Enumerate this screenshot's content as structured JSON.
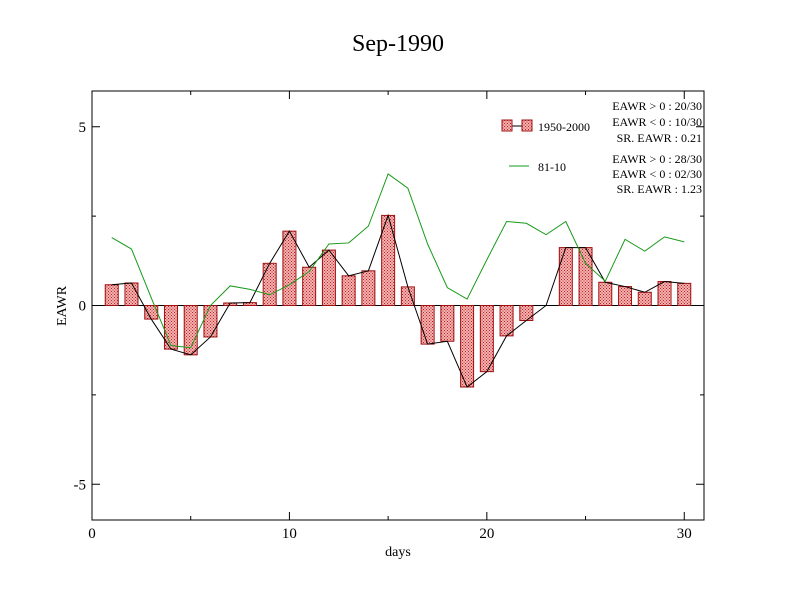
{
  "chart_data": {
    "type": "bar",
    "title": "Sep-1990",
    "xlabel": "days",
    "ylabel": "EAWR",
    "xlim": [
      0,
      31
    ],
    "ylim": [
      -6,
      6
    ],
    "x_ticks": [
      0,
      10,
      20,
      30
    ],
    "y_ticks": [
      -5,
      0,
      5
    ],
    "grid": false,
    "legend_position": "top-right",
    "days": [
      1,
      2,
      3,
      4,
      5,
      6,
      7,
      8,
      9,
      10,
      11,
      12,
      13,
      14,
      15,
      16,
      17,
      18,
      19,
      20,
      21,
      22,
      23,
      24,
      25,
      26,
      27,
      28,
      29,
      30
    ],
    "series": [
      {
        "name": "1950-2000",
        "kind": "bar",
        "values": [
          0.58,
          0.63,
          -0.38,
          -1.22,
          -1.38,
          -0.88,
          0.07,
          0.08,
          1.18,
          2.08,
          1.07,
          1.55,
          0.83,
          0.97,
          2.52,
          0.52,
          -1.08,
          -1.0,
          -2.28,
          -1.85,
          -0.85,
          -0.42,
          0.0,
          1.62,
          1.62,
          0.65,
          0.53,
          0.37,
          0.67,
          0.62
        ]
      },
      {
        "name": "81-10",
        "kind": "line",
        "values": [
          1.9,
          1.58,
          0.22,
          -1.12,
          -1.18,
          0.0,
          0.55,
          0.45,
          0.3,
          0.58,
          0.95,
          1.72,
          1.75,
          2.22,
          3.68,
          3.28,
          1.72,
          0.5,
          0.18,
          1.28,
          2.35,
          2.3,
          1.98,
          2.35,
          1.18,
          0.68,
          1.85,
          1.52,
          1.92,
          1.78
        ]
      }
    ],
    "stats": [
      {
        "series": "1950-2000",
        "lines": [
          "EAWR > 0 : 20/30",
          "EAWR < 0 : 10/30",
          "SR. EAWR :  0.21"
        ]
      },
      {
        "series": "81-10",
        "lines": [
          "EAWR > 0 : 28/30",
          "EAWR < 0 : 02/30",
          "SR. EAWR :  1.23"
        ]
      }
    ],
    "colors": {
      "bar_fill": "#f0a0a0",
      "bar_stroke": "#a01010",
      "bar_line": "#000000",
      "climo_line": "#1a9a1a",
      "axis": "#000000"
    }
  }
}
